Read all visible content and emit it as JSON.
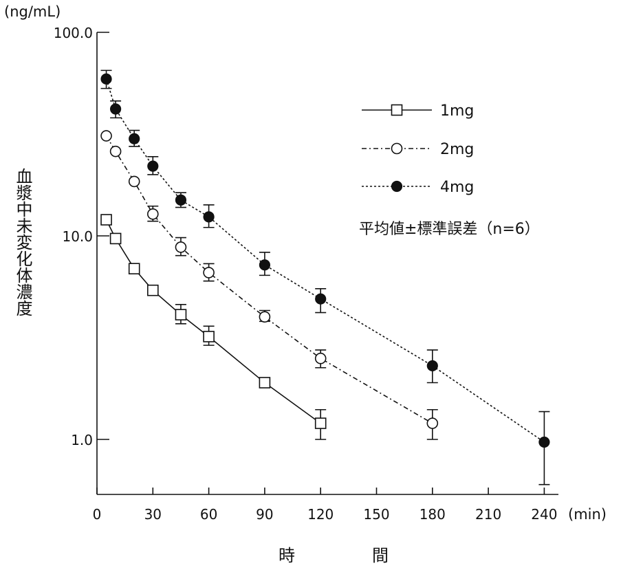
{
  "chart_data": {
    "type": "line",
    "y_scale": "log",
    "y_unit": "(ng/mL)",
    "x_unit": "(min)",
    "ylabel": "血漿中未変化体濃度",
    "xlabel": "時　間",
    "ylim": [
      0.55,
      100
    ],
    "xlim": [
      0,
      250
    ],
    "y_ticks": [
      {
        "value": 100,
        "label": "100.0"
      },
      {
        "value": 10,
        "label": "10.0"
      },
      {
        "value": 1,
        "label": "1.0"
      }
    ],
    "x_ticks": [
      0,
      30,
      60,
      90,
      120,
      150,
      180,
      210,
      240
    ],
    "x_tick_labels": [
      "0",
      "30",
      "60",
      "90",
      "120",
      "150",
      "180",
      "210",
      "240"
    ],
    "legend_position": "top-right",
    "note": "平均値±標準誤差（n=6）",
    "series": [
      {
        "name": "1mg",
        "marker": "open-square",
        "line": "solid",
        "x": [
          5,
          10,
          20,
          30,
          45,
          60,
          90,
          120
        ],
        "y": [
          12.0,
          9.7,
          6.9,
          5.4,
          4.1,
          3.2,
          1.9,
          1.2
        ],
        "err_upper": [
          12.0,
          9.7,
          6.9,
          5.4,
          4.6,
          3.6,
          1.9,
          1.4
        ],
        "err_lower": [
          12.0,
          9.7,
          6.9,
          5.4,
          3.7,
          2.9,
          1.9,
          1.0
        ]
      },
      {
        "name": "2mg",
        "marker": "open-circle",
        "line": "dash-dot",
        "x": [
          5,
          10,
          20,
          30,
          45,
          60,
          90,
          120,
          180
        ],
        "y": [
          31,
          26,
          18.5,
          12.8,
          8.8,
          6.6,
          4.0,
          2.5,
          1.2
        ],
        "err_upper": [
          31,
          26,
          18.5,
          14.0,
          9.8,
          7.3,
          4.3,
          2.75,
          1.4
        ],
        "err_lower": [
          31,
          26,
          18.5,
          11.8,
          8.0,
          6.0,
          3.8,
          2.25,
          1.0
        ]
      },
      {
        "name": "4mg",
        "marker": "filled-circle",
        "line": "dotted",
        "x": [
          5,
          10,
          20,
          30,
          45,
          60,
          90,
          120,
          180,
          240
        ],
        "y": [
          59,
          42,
          30,
          22,
          15,
          12.4,
          7.2,
          4.9,
          2.3,
          0.97
        ],
        "err_upper": [
          65,
          46,
          33,
          24.5,
          16.3,
          14.2,
          8.3,
          5.5,
          2.75,
          1.37
        ],
        "err_lower": [
          53,
          38,
          27.5,
          20,
          13.8,
          11.0,
          6.4,
          4.2,
          1.9,
          0.6
        ]
      }
    ]
  }
}
